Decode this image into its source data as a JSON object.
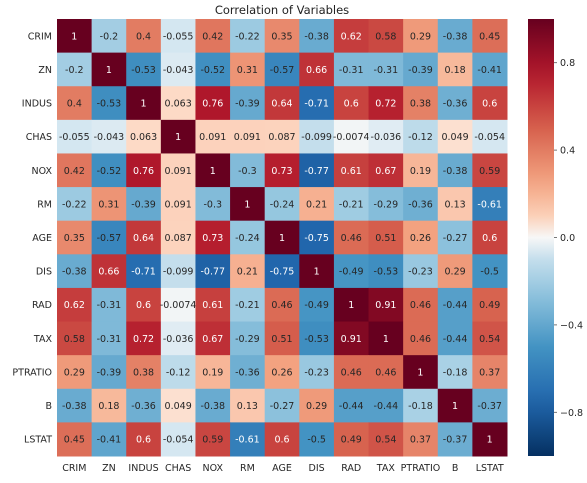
{
  "chart_data": {
    "type": "heatmap",
    "title": "Correlation of Variables",
    "xlabel": "",
    "ylabel": "",
    "variables": [
      "CRIM",
      "ZN",
      "INDUS",
      "CHAS",
      "NOX",
      "RM",
      "AGE",
      "DIS",
      "RAD",
      "TAX",
      "PTRATIO",
      "B",
      "LSTAT"
    ],
    "cell_labels": [
      [
        "1",
        "-0.2",
        "0.4",
        "-0.055",
        "0.42",
        "-0.22",
        "0.35",
        "-0.38",
        "0.62",
        "0.58",
        "0.29",
        "-0.38",
        "0.45"
      ],
      [
        "-0.2",
        "1",
        "-0.53",
        "-0.043",
        "-0.52",
        "0.31",
        "-0.57",
        "0.66",
        "-0.31",
        "-0.31",
        "-0.39",
        "0.18",
        "-0.41"
      ],
      [
        "0.4",
        "-0.53",
        "1",
        "0.063",
        "0.76",
        "-0.39",
        "0.64",
        "-0.71",
        "0.6",
        "0.72",
        "0.38",
        "-0.36",
        "0.6"
      ],
      [
        "-0.055",
        "-0.043",
        "0.063",
        "1",
        "0.091",
        "0.091",
        "0.087",
        "-0.099",
        "-0.0074",
        "-0.036",
        "-0.12",
        "0.049",
        "-0.054"
      ],
      [
        "0.42",
        "-0.52",
        "0.76",
        "0.091",
        "1",
        "-0.3",
        "0.73",
        "-0.77",
        "0.61",
        "0.67",
        "0.19",
        "-0.38",
        "0.59"
      ],
      [
        "-0.22",
        "0.31",
        "-0.39",
        "0.091",
        "-0.3",
        "1",
        "-0.24",
        "0.21",
        "-0.21",
        "-0.29",
        "-0.36",
        "0.13",
        "-0.61"
      ],
      [
        "0.35",
        "-0.57",
        "0.64",
        "0.087",
        "0.73",
        "-0.24",
        "1",
        "-0.75",
        "0.46",
        "0.51",
        "0.26",
        "-0.27",
        "0.6"
      ],
      [
        "-0.38",
        "0.66",
        "-0.71",
        "-0.099",
        "-0.77",
        "0.21",
        "-0.75",
        "1",
        "-0.49",
        "-0.53",
        "-0.23",
        "0.29",
        "-0.5"
      ],
      [
        "0.62",
        "-0.31",
        "0.6",
        "-0.0074",
        "0.61",
        "-0.21",
        "0.46",
        "-0.49",
        "1",
        "0.91",
        "0.46",
        "-0.44",
        "0.49"
      ],
      [
        "0.58",
        "-0.31",
        "0.72",
        "-0.036",
        "0.67",
        "-0.29",
        "0.51",
        "-0.53",
        "0.91",
        "1",
        "0.46",
        "-0.44",
        "0.54"
      ],
      [
        "0.29",
        "-0.39",
        "0.38",
        "-0.12",
        "0.19",
        "-0.36",
        "0.26",
        "-0.23",
        "0.46",
        "0.46",
        "1",
        "-0.18",
        "0.37"
      ],
      [
        "-0.38",
        "0.18",
        "-0.36",
        "0.049",
        "-0.38",
        "0.13",
        "-0.27",
        "0.29",
        "-0.44",
        "-0.44",
        "-0.18",
        "1",
        "-0.37"
      ],
      [
        "0.45",
        "-0.41",
        "0.6",
        "-0.054",
        "0.59",
        "-0.61",
        "0.6",
        "-0.5",
        "0.49",
        "0.54",
        "0.37",
        "-0.37",
        "1"
      ]
    ],
    "colorbar": {
      "range": [
        -1,
        1
      ],
      "ticks": [
        0.8,
        0.4,
        0.0,
        -0.4,
        -0.8
      ],
      "tick_labels": [
        "0.8",
        "0.4",
        "0.0",
        "−0.4",
        "−0.8"
      ],
      "colormap": "RdBu_r"
    },
    "grid": false,
    "legend": "colorbar-right"
  }
}
